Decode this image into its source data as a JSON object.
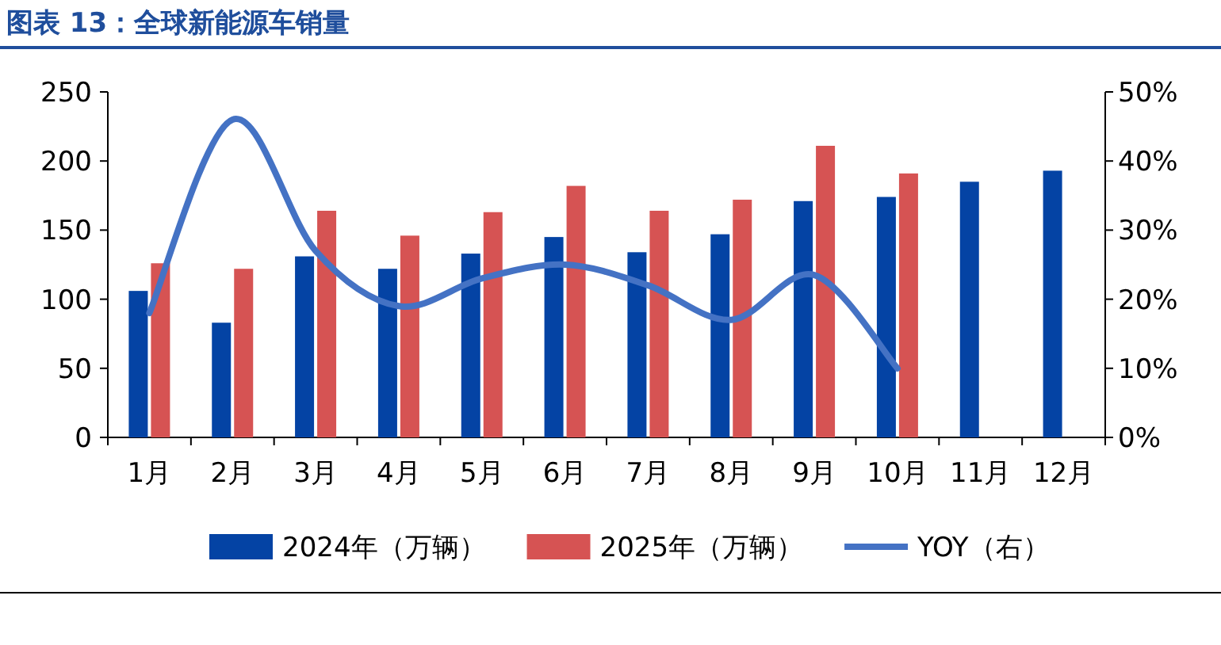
{
  "chart_data": {
    "type": "bar",
    "title": "图表 13：全球新能源车销量",
    "categories": [
      "1月",
      "2月",
      "3月",
      "4月",
      "5月",
      "6月",
      "7月",
      "8月",
      "9月",
      "10月",
      "11月",
      "12月"
    ],
    "series": [
      {
        "name": "2024年（万辆）",
        "color": "#0443a4",
        "values": [
          106,
          83,
          131,
          122,
          133,
          145,
          134,
          147,
          171,
          174,
          185,
          193
        ]
      },
      {
        "name": "2025年（万辆）",
        "color": "#d65353",
        "values": [
          126,
          122,
          164,
          146,
          163,
          182,
          164,
          172,
          211,
          191,
          null,
          null
        ]
      },
      {
        "name": "YOY（右）",
        "type": "line",
        "axis": "y2",
        "color": "#4472c4",
        "values": [
          18,
          46,
          27,
          19,
          23,
          25,
          22,
          17,
          23.5,
          10,
          null,
          null
        ]
      }
    ],
    "ylim": [
      0,
      250
    ],
    "yticks": [
      0,
      50,
      100,
      150,
      200,
      250
    ],
    "y2lim": [
      0,
      50
    ],
    "y2ticks": [
      {
        "value": 0,
        "label": "0%"
      },
      {
        "value": 10,
        "label": "10%"
      },
      {
        "value": 20,
        "label": "20%"
      },
      {
        "value": 30,
        "label": "30%"
      },
      {
        "value": 40,
        "label": "40%"
      },
      {
        "value": 50,
        "label": "50%"
      }
    ],
    "legend": "bottom",
    "grid": false
  }
}
